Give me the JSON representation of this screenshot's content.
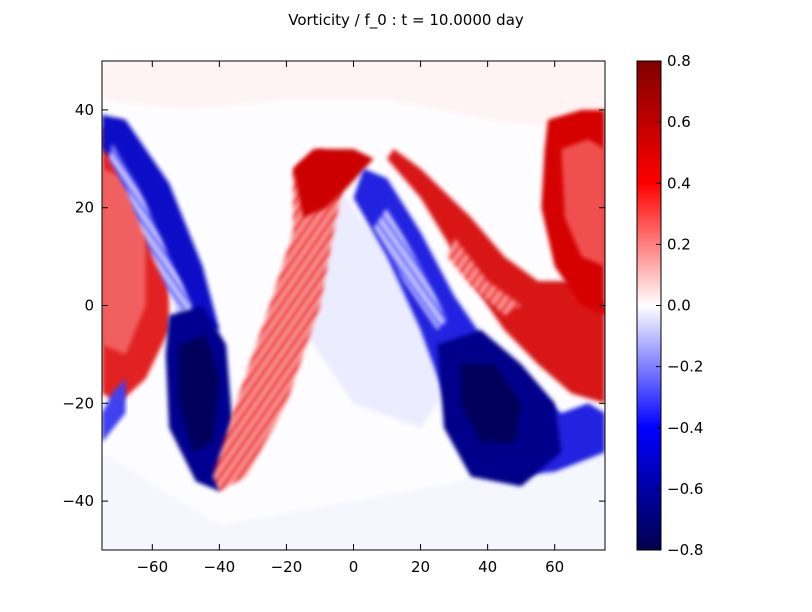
{
  "chart_data": {
    "type": "heatmap",
    "title": "Vorticity / f_0 : t = 10.0000 day",
    "xlabel": "",
    "ylabel": "",
    "xlim": [
      -75,
      75
    ],
    "ylim": [
      -50,
      50
    ],
    "x_ticks": [
      -60,
      -40,
      -20,
      0,
      20,
      40,
      60
    ],
    "y_ticks": [
      -40,
      -20,
      0,
      20,
      40
    ],
    "x_tick_labels": [
      "−60",
      "−40",
      "−20",
      "0",
      "20",
      "40",
      "60"
    ],
    "y_tick_labels": [
      "−40",
      "−20",
      "0",
      "20",
      "40"
    ],
    "colorbar": {
      "vmin": -0.8,
      "vmax": 0.8,
      "ticks": [
        -0.8,
        -0.6,
        -0.4,
        -0.2,
        0.0,
        0.2,
        0.4,
        0.6,
        0.8
      ],
      "tick_labels": [
        "−0.8",
        "−0.6",
        "−0.4",
        "−0.2",
        "0.0",
        "0.2",
        "0.4",
        "0.6",
        "0.8"
      ],
      "colormap": "seismic",
      "color_low": "#00004c",
      "color_mid": "#ffffff",
      "color_high": "#800000"
    },
    "features": [
      {
        "kind": "positive-band",
        "description_values": {
          "x": [
            -70,
            -40,
            -20,
            0,
            10,
            40,
            75
          ],
          "y": [
            30,
            5,
            -30,
            30,
            28,
            0,
            -20
          ]
        },
        "value": 0.6
      },
      {
        "kind": "negative-band",
        "description_values": {
          "x": [
            -72,
            -50,
            -40,
            5,
            20,
            40,
            75
          ],
          "y": [
            38,
            10,
            -38,
            28,
            10,
            -25,
            -20
          ]
        },
        "value": -0.7
      },
      {
        "kind": "positive-vortex",
        "center": [
          -70,
          15
        ],
        "value": 0.6
      },
      {
        "kind": "positive-vortex",
        "center": [
          68,
          20
        ],
        "value": 0.6
      },
      {
        "kind": "negative-vortex",
        "center": [
          -42,
          -20
        ],
        "value": -0.75
      },
      {
        "kind": "negative-vortex",
        "center": [
          40,
          -20
        ],
        "value": -0.75
      }
    ]
  }
}
